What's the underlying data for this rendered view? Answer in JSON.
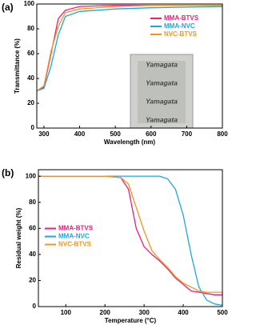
{
  "chart_data": [
    {
      "type": "line",
      "panel_label": "(a)",
      "xlabel": "Wavelength (nm)",
      "ylabel": "Transmittance (%)",
      "x": [
        280,
        300,
        320,
        340,
        360,
        400,
        500,
        600,
        800
      ],
      "series": [
        {
          "name": "MMA-BTVS",
          "color": "#e8207a",
          "values": [
            30,
            33,
            60,
            88,
            95,
            98,
            99,
            99,
            99
          ]
        },
        {
          "name": "MMA-NVC",
          "color": "#1ea6e0",
          "values": [
            30,
            32,
            50,
            75,
            90,
            94,
            96,
            97,
            98
          ]
        },
        {
          "name": "NVC-BTVS",
          "color": "#f7941d",
          "values": [
            30,
            34,
            62,
            82,
            93,
            96,
            98,
            99,
            99
          ]
        }
      ],
      "xlim": [
        280,
        800
      ],
      "xticks": [
        300,
        400,
        500,
        600,
        700,
        800
      ],
      "ylim": [
        0,
        100
      ],
      "yticks": [
        0,
        20,
        40,
        60,
        80,
        100
      ],
      "legend": "upper right",
      "inset_labels": [
        "Yamagata",
        "Yamagata",
        "Yamagata",
        "Yamagata"
      ]
    },
    {
      "type": "line",
      "panel_label": "(b)",
      "xlabel": "Temperature (°C)",
      "ylabel": "Residual weight (%)",
      "x": [
        30,
        200,
        240,
        260,
        280,
        300,
        320,
        340,
        350,
        360,
        380,
        400,
        420,
        440,
        460,
        480,
        500
      ],
      "series": [
        {
          "name": "MMA-BTVS",
          "color": "#e8207a",
          "values": [
            100,
            100,
            99,
            90,
            60,
            46,
            40,
            35,
            32,
            29,
            22,
            17,
            12,
            11,
            10,
            9,
            9
          ]
        },
        {
          "name": "MMA-NVC",
          "color": "#1ea6e0",
          "values": [
            100,
            100,
            100,
            100,
            100,
            100,
            100,
            100,
            99,
            98,
            90,
            70,
            40,
            15,
            5,
            2,
            1
          ]
        },
        {
          "name": "NVC-BTVS",
          "color": "#f7941d",
          "values": [
            100,
            100,
            99,
            94,
            76,
            58,
            43,
            36,
            33,
            30,
            23,
            18,
            15,
            12,
            11,
            11,
            11
          ]
        }
      ],
      "xlim": [
        30,
        500
      ],
      "xticks": [
        100,
        200,
        300,
        400,
        500
      ],
      "ylim": [
        0,
        105
      ],
      "yticks": [
        0,
        20,
        40,
        60,
        80,
        100
      ],
      "legend": "center left"
    }
  ]
}
